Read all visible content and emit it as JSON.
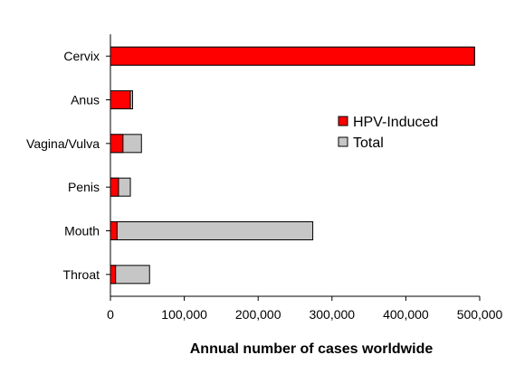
{
  "chart_data": {
    "type": "bar",
    "orientation": "horizontal",
    "stacking": "overlay",
    "categories": [
      "Cervix",
      "Anus",
      "Vagina/Vulva",
      "Penis",
      "Mouth",
      "Throat"
    ],
    "series": [
      {
        "name": "Total",
        "color": "#c6c6c6",
        "values": [
          493000,
          30000,
          42000,
          27000,
          274000,
          53000
        ]
      },
      {
        "name": "HPV-Induced",
        "color": "#ff0000",
        "values": [
          493000,
          27000,
          17000,
          11000,
          9000,
          7000
        ]
      }
    ],
    "xlabel": "Annual number of cases worldwide",
    "ylabel": "",
    "title": "",
    "xlim": [
      0,
      500000
    ],
    "xticks": [
      0,
      100000,
      200000,
      300000,
      400000,
      500000
    ],
    "xtick_labels": [
      "0",
      "100,000",
      "200,000",
      "300,000",
      "400,000",
      "500,000"
    ],
    "legend": {
      "placement": "right",
      "entries": [
        "HPV-Induced",
        "Total"
      ]
    },
    "grid": false
  }
}
